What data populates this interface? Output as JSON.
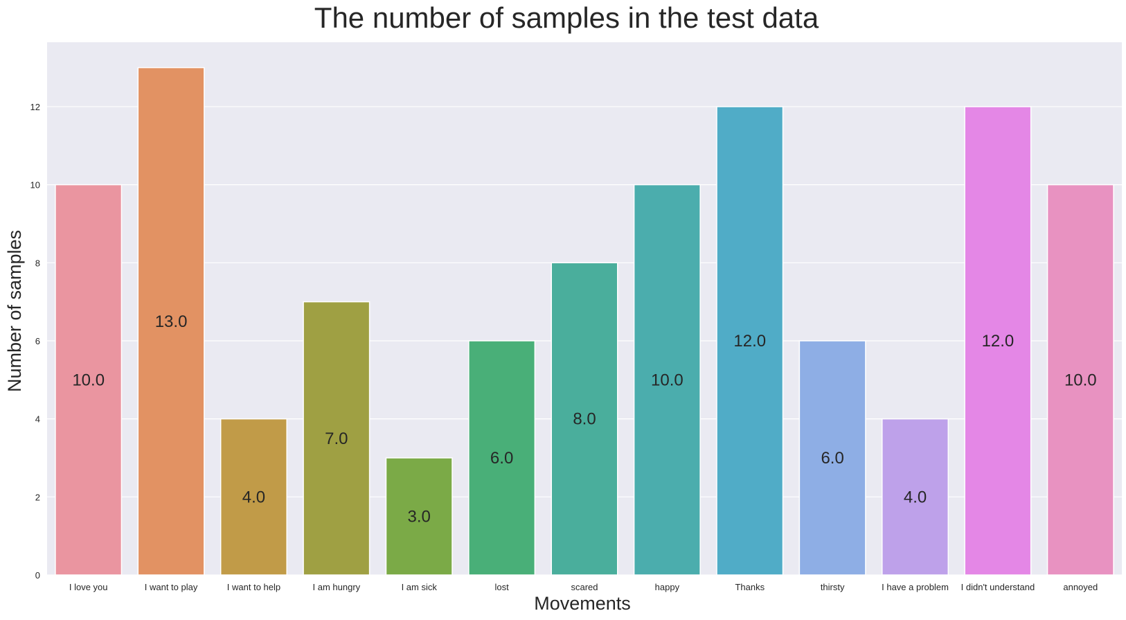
{
  "chart_data": {
    "type": "bar",
    "title": "The number of samples in the test data",
    "xlabel": "Movements",
    "ylabel": "Number of samples",
    "categories": [
      "I love you",
      "I want to play",
      "I want to help",
      "I am hungry",
      "I am sick",
      "lost",
      "scared",
      "happy",
      "Thanks",
      "thirsty",
      "I have a problem",
      "I didn't understand",
      "annoyed"
    ],
    "values": [
      10,
      13,
      4,
      7,
      3,
      6,
      8,
      10,
      12,
      6,
      4,
      12,
      10
    ],
    "value_labels": [
      "10.0",
      "13.0",
      "4.0",
      "7.0",
      "3.0",
      "6.0",
      "8.0",
      "10.0",
      "12.0",
      "6.0",
      "4.0",
      "12.0",
      "10.0"
    ],
    "bar_colors": [
      "#EA95A0",
      "#E29263",
      "#C19B48",
      "#9FA043",
      "#7BAA47",
      "#49AF78",
      "#4AAE9C",
      "#4BADAD",
      "#50ACC7",
      "#8EAEE5",
      "#BEA1EA",
      "#E487E6",
      "#E892C1"
    ],
    "ylim": [
      0,
      13.65
    ],
    "yticks": [
      0,
      2,
      4,
      6,
      8,
      10,
      12
    ],
    "grid": true,
    "background_color": "#EAEAF2",
    "grid_color": "#FFFFFF"
  }
}
